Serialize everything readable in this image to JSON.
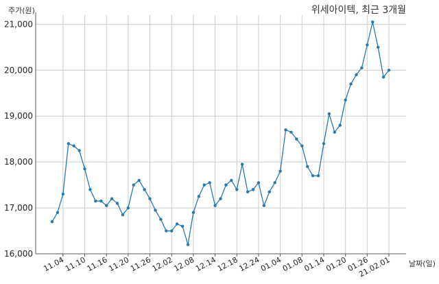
{
  "chart_data": {
    "type": "line",
    "title": "위세아이텍, 최근 3개월",
    "ylabel": "주가(원)",
    "xlabel": "날짜(일)",
    "ylim": [
      16000,
      21200
    ],
    "yticks": [
      16000,
      17000,
      18000,
      19000,
      20000,
      21000
    ],
    "ytick_labels": [
      "16,000",
      "17,000",
      "18,000",
      "19,000",
      "20,000",
      "21,000"
    ],
    "xtick_labels": [
      "11.04",
      "11.10",
      "11.16",
      "11.20",
      "11.26",
      "12.02",
      "12.08",
      "12.14",
      "12.18",
      "12.24",
      "01.04",
      "01.08",
      "01.14",
      "01.20",
      "01.26",
      "21.02.01"
    ],
    "xtick_index": [
      2,
      6,
      10,
      14,
      18,
      22,
      26,
      30,
      34,
      38,
      42,
      46,
      50,
      54,
      58,
      62
    ],
    "grid": true,
    "color": "#2878b0",
    "series": [
      {
        "values": [
          16700,
          16900,
          17300,
          18400,
          18350,
          18250,
          17850,
          17400,
          17150,
          17150,
          17050,
          17200,
          17100,
          16850,
          17000,
          17500,
          17600,
          17400,
          17200,
          16950,
          16750,
          16500,
          16500,
          16650,
          16600,
          16200,
          16900,
          17250,
          17500,
          17550,
          17050,
          17200,
          17500,
          17600,
          17400,
          17950,
          17350,
          17400,
          17550,
          17050,
          17350,
          17550,
          17800,
          18700,
          18650,
          18500,
          18350,
          17900,
          17700,
          17700,
          18400,
          19050,
          18650,
          18800,
          19350,
          19700,
          19900,
          20050,
          20550,
          21050,
          20500,
          19850,
          20000
        ]
      }
    ]
  }
}
